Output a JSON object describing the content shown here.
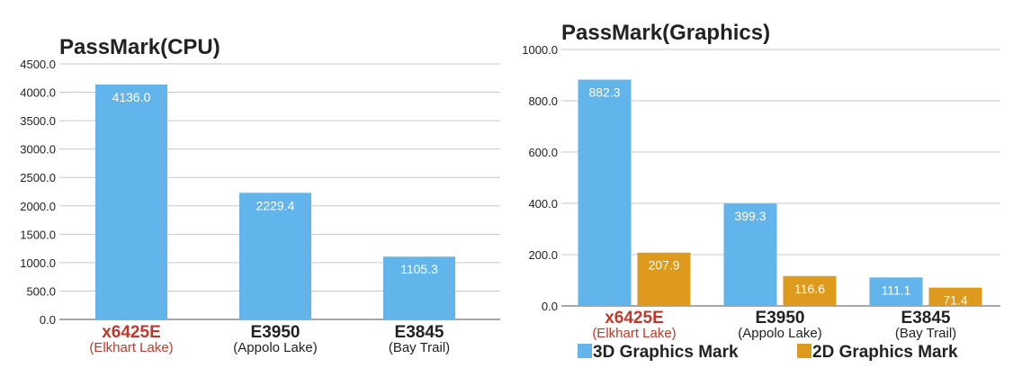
{
  "colors": {
    "blue": "#62b5ea",
    "orange": "#dd9a1c",
    "highlight_label": "#c0392b"
  },
  "chart_data": [
    {
      "type": "bar",
      "title": "PassMark(CPU)",
      "categories": [
        {
          "name": "x6425E",
          "sub": "(Elkhart Lake)",
          "highlight": true
        },
        {
          "name": "E3950",
          "sub": "(Appolo Lake)",
          "highlight": false
        },
        {
          "name": "E3845",
          "sub": "(Bay Trail)",
          "highlight": false
        }
      ],
      "series": [
        {
          "color": "#62b5ea",
          "values": [
            4136.0,
            2229.4,
            1105.3
          ],
          "labels": [
            "4136.0",
            "2229.4",
            "1105.3"
          ]
        }
      ],
      "ylim": [
        0,
        4500
      ],
      "yticks": [
        "0.0",
        "500.0",
        "1000.0",
        "1500.0",
        "2000.0",
        "2500.0",
        "3000.0",
        "3500.0",
        "4000.0",
        "4500.0"
      ],
      "grid": true,
      "legend": null
    },
    {
      "type": "bar",
      "title": "PassMark(Graphics)",
      "categories": [
        {
          "name": "x6425E",
          "sub": "(Elkhart Lake)",
          "highlight": true
        },
        {
          "name": "E3950",
          "sub": "(Appolo Lake)",
          "highlight": false
        },
        {
          "name": "E3845",
          "sub": "(Bay Trail)",
          "highlight": false
        }
      ],
      "series": [
        {
          "name": "3D Graphics Mark",
          "color": "#62b5ea",
          "values": [
            882.3,
            399.3,
            111.1
          ],
          "labels": [
            "882.3",
            "399.3",
            "111.1"
          ]
        },
        {
          "name": "2D Graphics Mark",
          "color": "#dd9a1c",
          "values": [
            207.9,
            116.6,
            71.4
          ],
          "labels": [
            "207.9",
            "116.6",
            "71.4"
          ]
        }
      ],
      "ylim": [
        0,
        1000
      ],
      "yticks": [
        "0.0",
        "200.0",
        "400.0",
        "600.0",
        "800.0",
        "1000.0"
      ],
      "grid": true,
      "legend": "bottom"
    }
  ]
}
